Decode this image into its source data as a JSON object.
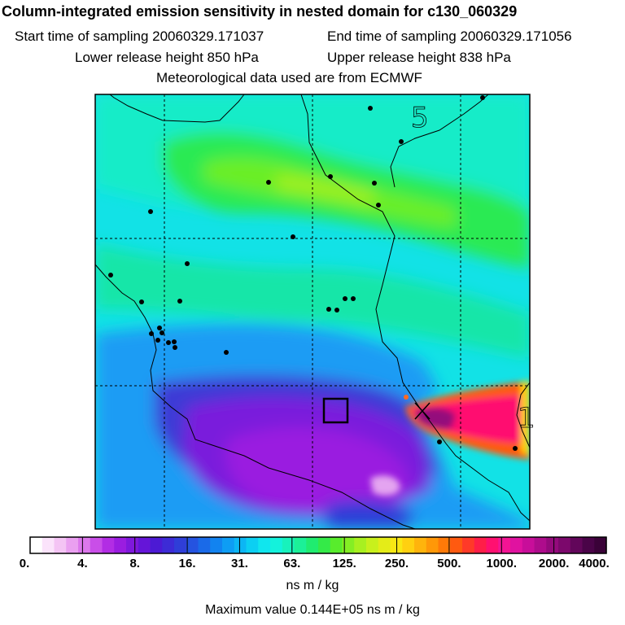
{
  "header": {
    "title": "Column-integrated emission sensitivity in nested domain for c130_060329",
    "start_label": "Start time of sampling 20060329.171037",
    "end_label": "End time of sampling 20060329.171056",
    "lower_label": "Lower release height  850 hPa",
    "upper_label": "Upper release height  838 hPa",
    "met_label": "Meteorological data used are from ECMWF"
  },
  "map": {
    "region_labels": [
      "5",
      "1"
    ],
    "features": [
      "gridlines",
      "coastlines",
      "city-dots",
      "release-box",
      "source-marker"
    ]
  },
  "colorbar": {
    "tick_labels": [
      "0.",
      "4.",
      "8.",
      "16.",
      "31.",
      "63.",
      "125.",
      "250.",
      "500.",
      "1000.",
      "2000.",
      "4000."
    ],
    "colors": [
      "#ffffff",
      "#fbe3fb",
      "#f4c4f4",
      "#eaa0f0",
      "#dc78ec",
      "#c94ee8",
      "#b22de4",
      "#9a1de0",
      "#7f18dc",
      "#6515d8",
      "#4c1ad4",
      "#3d2bd6",
      "#2f3ed8",
      "#2553e0",
      "#1a6ae8",
      "#1283f0",
      "#0e9df4",
      "#0cb6f4",
      "#0ccff2",
      "#10e6ee",
      "#14f2dc",
      "#18f2bc",
      "#1cf098",
      "#20ec70",
      "#34ea48",
      "#58ec2c",
      "#84ee24",
      "#a8f020",
      "#c8f01c",
      "#e4ec18",
      "#f8e814",
      "#ffd010",
      "#ffb40c",
      "#ff9808",
      "#ff7a08",
      "#ff5a10",
      "#ff3a28",
      "#ff1e48",
      "#ff1070",
      "#f41494",
      "#e012a0",
      "#c80e9a",
      "#ae0c8c",
      "#940a7c",
      "#7c086c",
      "#62065a",
      "#4a0448",
      "#3a0238"
    ],
    "units": "ns m / kg",
    "max_value": "Maximum value  0.144E+05 ns m / kg"
  }
}
